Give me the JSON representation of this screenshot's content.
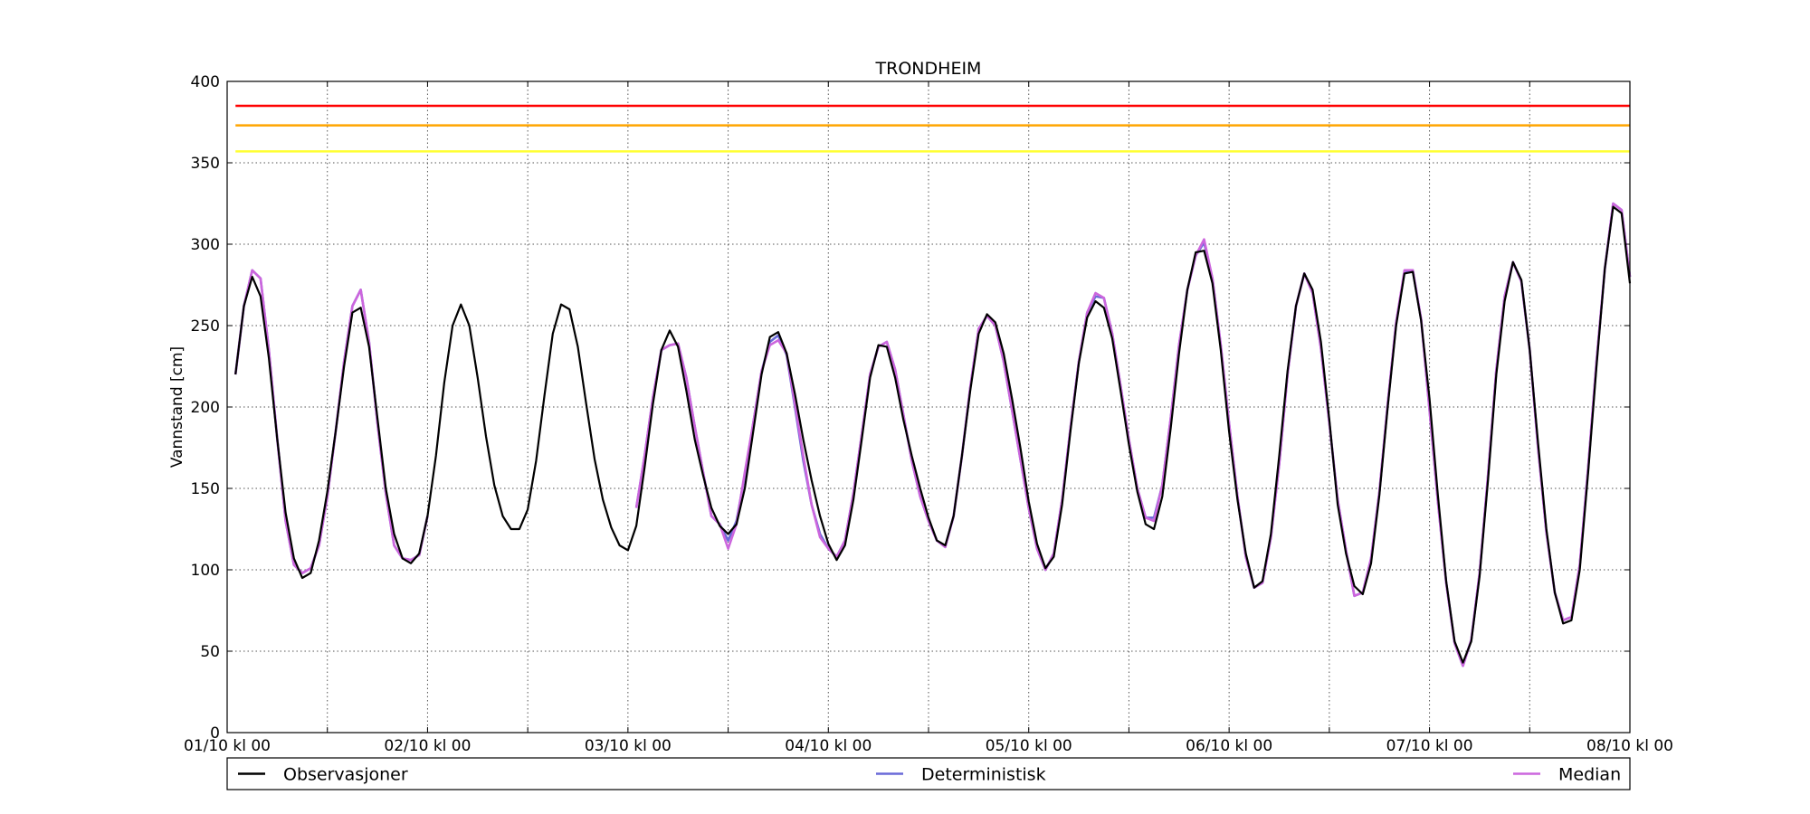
{
  "chart_data": {
    "type": "line",
    "title": "TRONDHEIM",
    "xlabel": "",
    "ylabel": "Vannstand [cm]",
    "ylim": [
      0,
      400
    ],
    "xlim": [
      0,
      168
    ],
    "x_unit": "hours since 01/10 kl 00",
    "grid": true,
    "yticks": [
      0,
      50,
      100,
      150,
      200,
      250,
      300,
      350,
      400
    ],
    "xticks": [
      {
        "h": 0,
        "label": "01/10 kl 00"
      },
      {
        "h": 12,
        "label": ""
      },
      {
        "h": 24,
        "label": "02/10 kl 00"
      },
      {
        "h": 36,
        "label": ""
      },
      {
        "h": 48,
        "label": "03/10 kl 00"
      },
      {
        "h": 60,
        "label": ""
      },
      {
        "h": 72,
        "label": "04/10 kl 00"
      },
      {
        "h": 84,
        "label": ""
      },
      {
        "h": 96,
        "label": "05/10 kl 00"
      },
      {
        "h": 108,
        "label": ""
      },
      {
        "h": 120,
        "label": "06/10 kl 00"
      },
      {
        "h": 132,
        "label": ""
      },
      {
        "h": 144,
        "label": "07/10 kl 00"
      },
      {
        "h": 156,
        "label": ""
      },
      {
        "h": 168,
        "label": "08/10 kl 00"
      }
    ],
    "thresholds": [
      {
        "value": 385,
        "color": "#ff0000"
      },
      {
        "value": 373,
        "color": "#ffa500"
      },
      {
        "value": 357,
        "color": "#ffff33"
      }
    ],
    "legend_position": "bottom",
    "series": [
      {
        "name": "Observasjoner",
        "color": "#000000",
        "x_start": 1,
        "values": [
          220,
          262,
          280,
          268,
          230,
          180,
          135,
          107,
          95,
          98,
          118,
          148,
          185,
          225,
          258,
          261,
          237,
          193,
          150,
          122,
          107,
          104,
          110,
          133,
          170,
          215,
          250,
          263,
          250,
          218,
          182,
          152,
          133,
          125,
          125,
          137,
          167,
          207,
          245,
          263,
          260,
          237,
          202,
          168,
          143,
          126,
          115,
          112,
          127,
          163,
          202,
          235,
          247,
          237,
          210,
          180,
          158,
          138,
          127,
          122,
          128,
          150,
          185,
          220,
          243,
          246,
          233,
          208,
          180,
          155,
          133,
          116,
          106,
          115,
          143,
          180,
          218,
          238,
          237,
          218,
          192,
          170,
          150,
          132,
          118,
          115,
          133,
          170,
          210,
          245,
          257,
          252,
          233,
          205,
          175,
          142,
          116,
          101,
          108,
          140,
          185,
          227,
          255,
          265,
          261,
          242,
          210,
          177,
          148,
          128,
          125,
          145,
          187,
          233,
          272,
          295,
          296,
          276,
          235,
          185,
          143,
          110,
          89,
          93,
          122,
          170,
          222,
          262,
          282,
          272,
          240,
          192,
          140,
          110,
          90,
          85,
          104,
          146,
          200,
          250,
          282,
          283,
          253,
          205,
          146,
          93,
          56,
          43,
          56,
          96,
          155,
          220,
          265,
          289,
          278,
          235,
          178,
          125,
          86,
          67,
          69,
          100,
          160,
          225,
          285,
          323,
          319,
          276
        ]
      },
      {
        "name": "Deterministisk",
        "color": "#6a6ad8",
        "x_start": 1,
        "values": [
          220,
          262,
          284,
          279,
          235,
          180,
          130,
          103,
          98,
          101,
          115,
          145,
          185,
          228,
          262,
          272,
          240,
          190,
          147,
          115,
          107,
          106,
          109,
          133,
          null,
          null,
          null,
          null,
          null,
          null,
          null,
          null,
          null,
          null,
          null,
          null,
          null,
          null,
          null,
          null,
          null,
          null,
          null,
          null,
          null,
          null,
          null,
          null,
          138,
          170,
          206,
          235,
          238,
          239,
          218,
          188,
          160,
          133,
          128,
          118,
          130,
          158,
          190,
          222,
          240,
          244,
          232,
          200,
          167,
          140,
          122,
          113,
          108,
          118,
          147,
          183,
          220,
          237,
          240,
          223,
          195,
          167,
          145,
          130,
          118,
          114,
          133,
          170,
          212,
          248,
          256,
          250,
          228,
          198,
          168,
          138,
          113,
          100,
          110,
          143,
          187,
          228,
          258,
          268,
          267,
          245,
          213,
          180,
          150,
          132,
          132,
          152,
          193,
          238,
          272,
          293,
          301,
          279,
          238,
          190,
          145,
          108,
          89,
          92,
          120,
          165,
          220,
          262,
          282,
          270,
          236,
          190,
          143,
          112,
          84,
          86,
          107,
          148,
          202,
          252,
          283,
          284,
          254,
          198,
          142,
          92,
          55,
          41,
          57,
          98,
          158,
          223,
          268,
          289,
          277,
          235,
          175,
          123,
          86,
          69,
          71,
          103,
          163,
          228,
          285,
          325,
          321,
          280
        ]
      },
      {
        "name": "Median",
        "color": "#cc66dd",
        "x_start": 1,
        "values": [
          220,
          262,
          284,
          279,
          235,
          180,
          130,
          103,
          98,
          101,
          115,
          145,
          185,
          228,
          262,
          272,
          240,
          190,
          147,
          115,
          107,
          106,
          109,
          133,
          null,
          null,
          null,
          null,
          null,
          null,
          null,
          null,
          null,
          null,
          null,
          null,
          null,
          null,
          null,
          null,
          null,
          null,
          null,
          null,
          null,
          null,
          null,
          null,
          138,
          170,
          206,
          235,
          238,
          239,
          218,
          188,
          160,
          133,
          128,
          113,
          128,
          160,
          190,
          222,
          238,
          241,
          233,
          202,
          170,
          140,
          120,
          113,
          108,
          118,
          147,
          183,
          220,
          237,
          240,
          223,
          195,
          167,
          145,
          130,
          118,
          114,
          133,
          170,
          212,
          248,
          256,
          250,
          228,
          198,
          168,
          138,
          113,
          100,
          110,
          143,
          187,
          228,
          258,
          270,
          267,
          245,
          213,
          180,
          150,
          132,
          130,
          152,
          193,
          238,
          272,
          293,
          303,
          279,
          238,
          190,
          145,
          108,
          89,
          92,
          120,
          165,
          220,
          262,
          282,
          270,
          236,
          190,
          143,
          112,
          84,
          86,
          107,
          148,
          202,
          252,
          284,
          284,
          254,
          198,
          142,
          92,
          55,
          41,
          57,
          98,
          158,
          223,
          268,
          289,
          277,
          235,
          175,
          123,
          86,
          69,
          71,
          103,
          163,
          228,
          285,
          325,
          321,
          280
        ]
      }
    ]
  }
}
